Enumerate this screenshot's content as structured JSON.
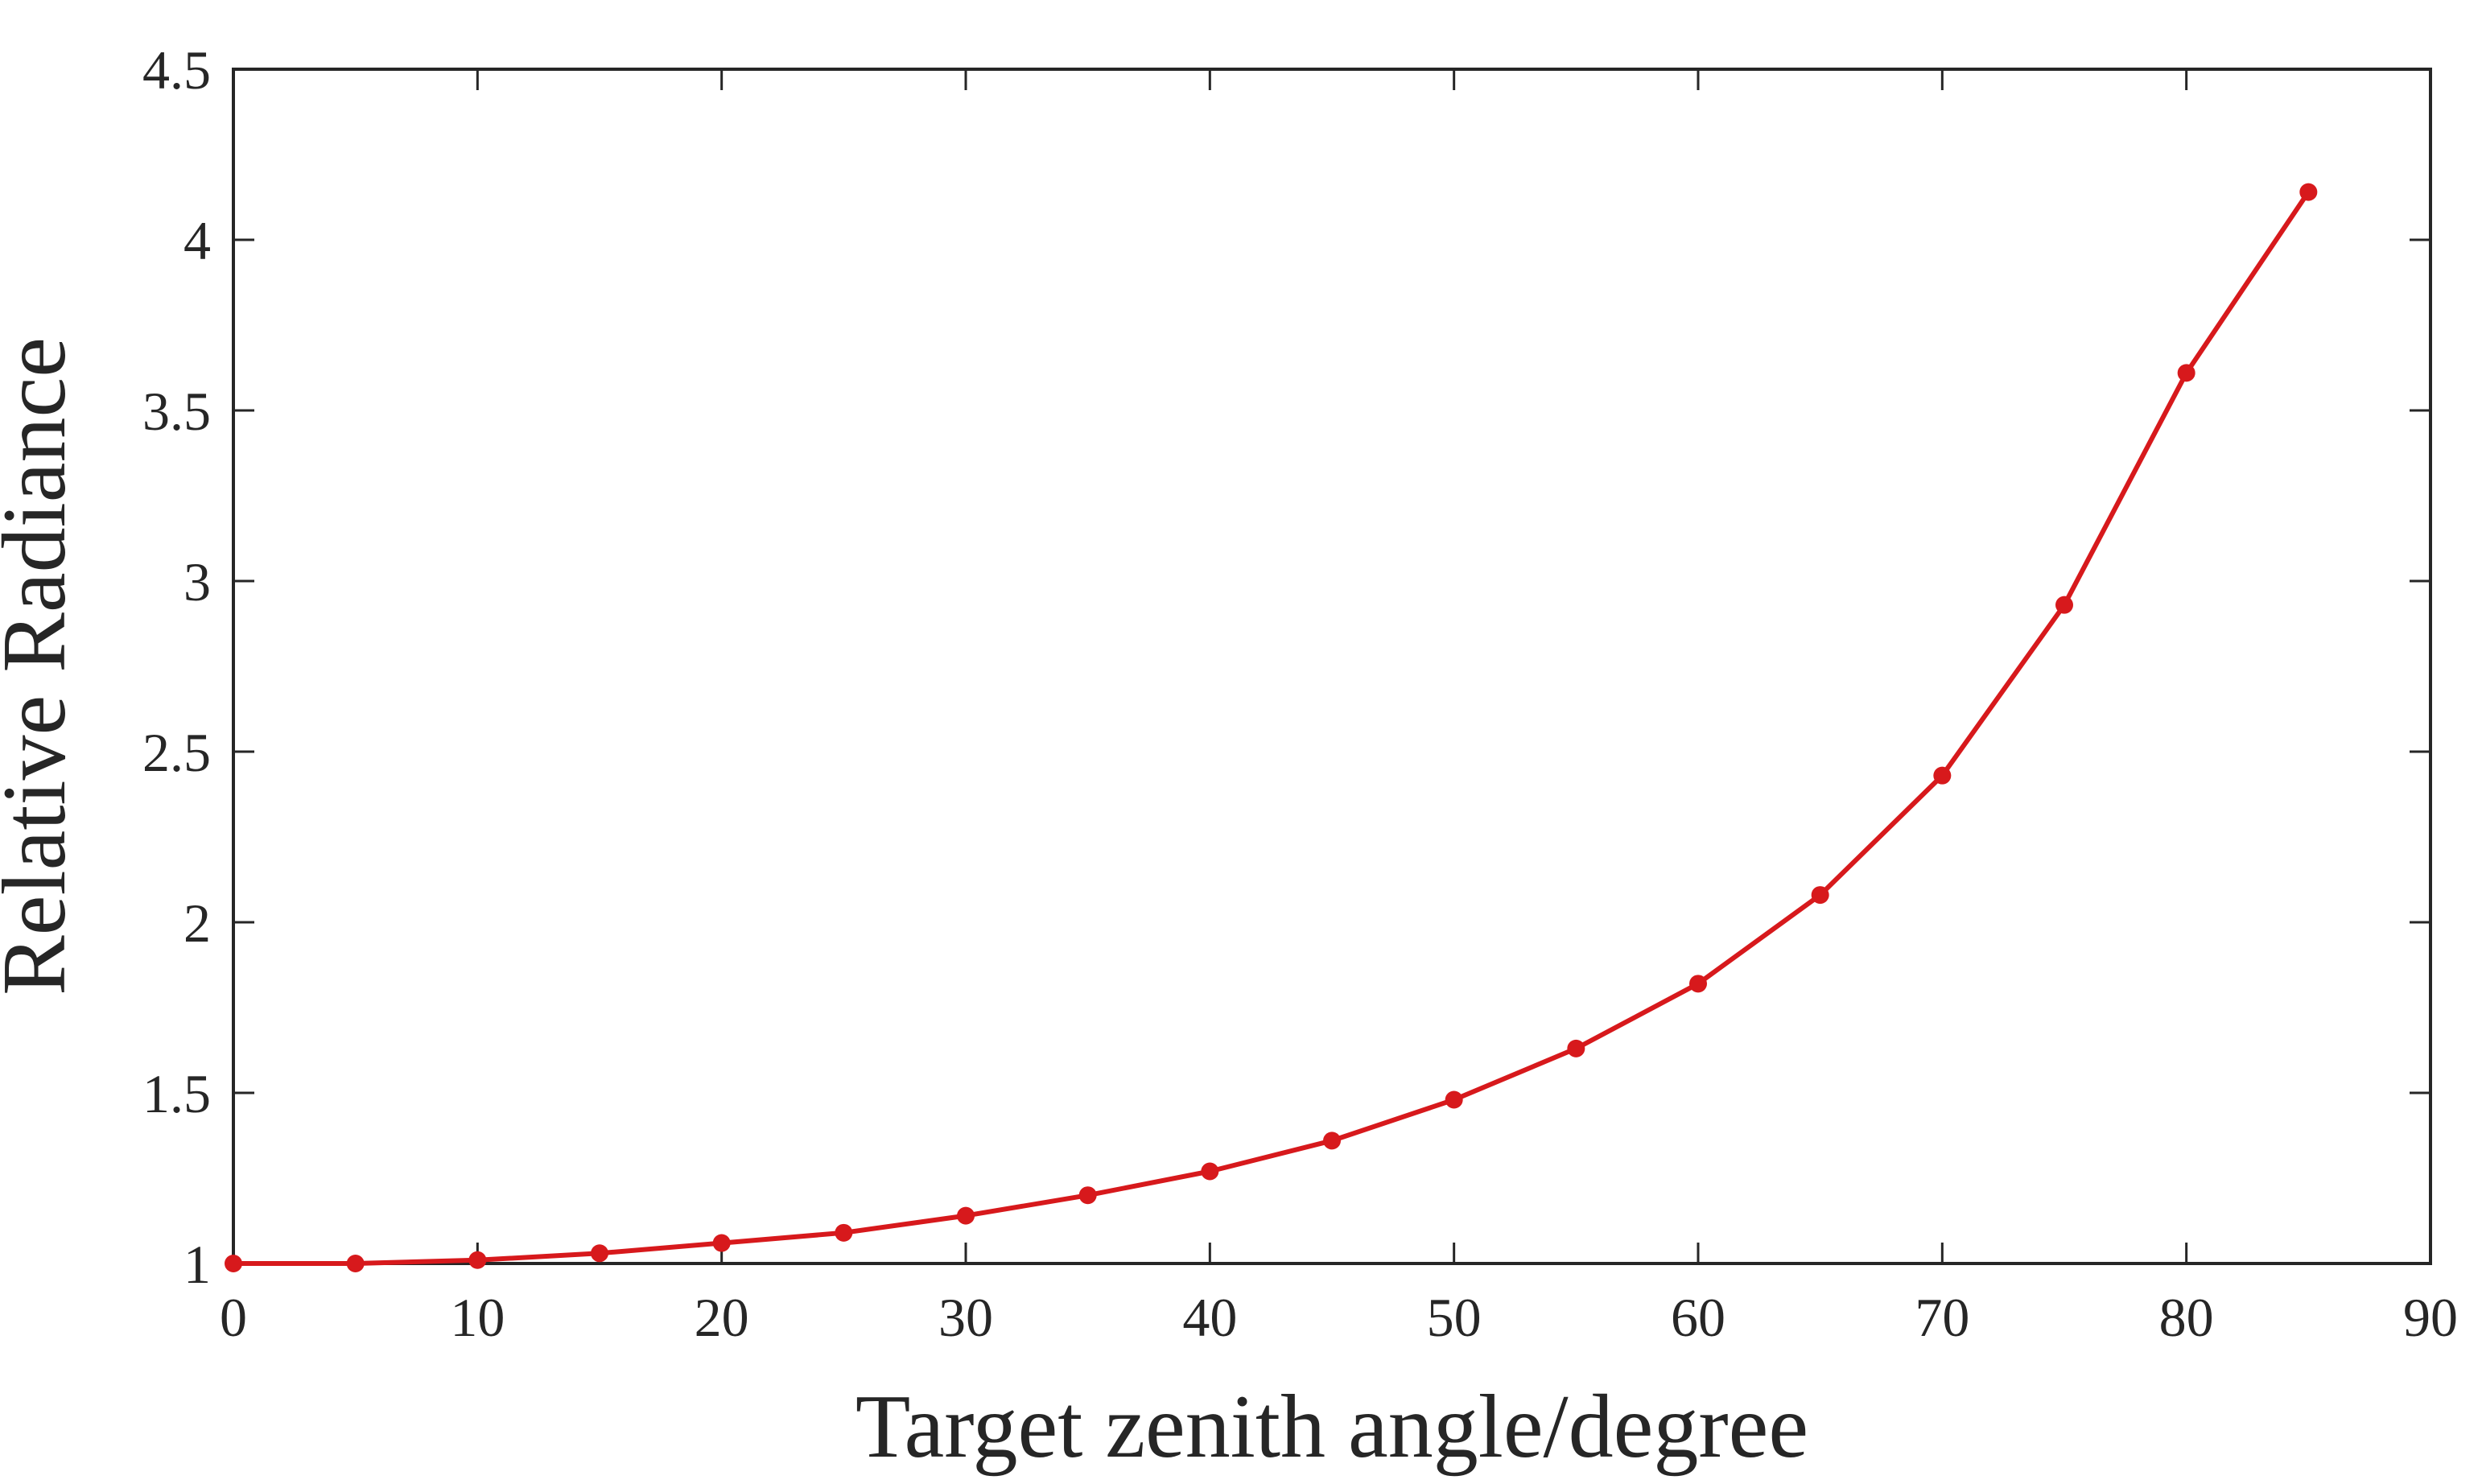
{
  "chart_data": {
    "type": "line",
    "title": "",
    "xlabel": "Target zenith angle/degree",
    "ylabel": "Relative Radiance",
    "xlim": [
      0,
      90
    ],
    "ylim": [
      1,
      4.5
    ],
    "xticks": [
      0,
      10,
      20,
      30,
      40,
      50,
      60,
      70,
      80,
      90
    ],
    "yticks": [
      1,
      1.5,
      2,
      2.5,
      3,
      3.5,
      4,
      4.5
    ],
    "xtick_labels": [
      "0",
      "10",
      "20",
      "30",
      "40",
      "50",
      "60",
      "70",
      "80",
      "90"
    ],
    "ytick_labels": [
      "1",
      "1.5",
      "2",
      "2.5",
      "3",
      "3.5",
      "4",
      "4.5"
    ],
    "grid": false,
    "legend": "none",
    "series": [
      {
        "color": "#d7191c",
        "marker": "circle",
        "x": [
          0,
          5,
          10,
          15,
          20,
          25,
          30,
          35,
          40,
          45,
          50,
          55,
          60,
          65,
          70,
          75,
          80,
          85
        ],
        "y": [
          1.0,
          1.0,
          1.01,
          1.03,
          1.06,
          1.09,
          1.14,
          1.2,
          1.27,
          1.36,
          1.48,
          1.63,
          1.82,
          2.08,
          2.43,
          2.93,
          3.61,
          4.14
        ]
      }
    ]
  }
}
